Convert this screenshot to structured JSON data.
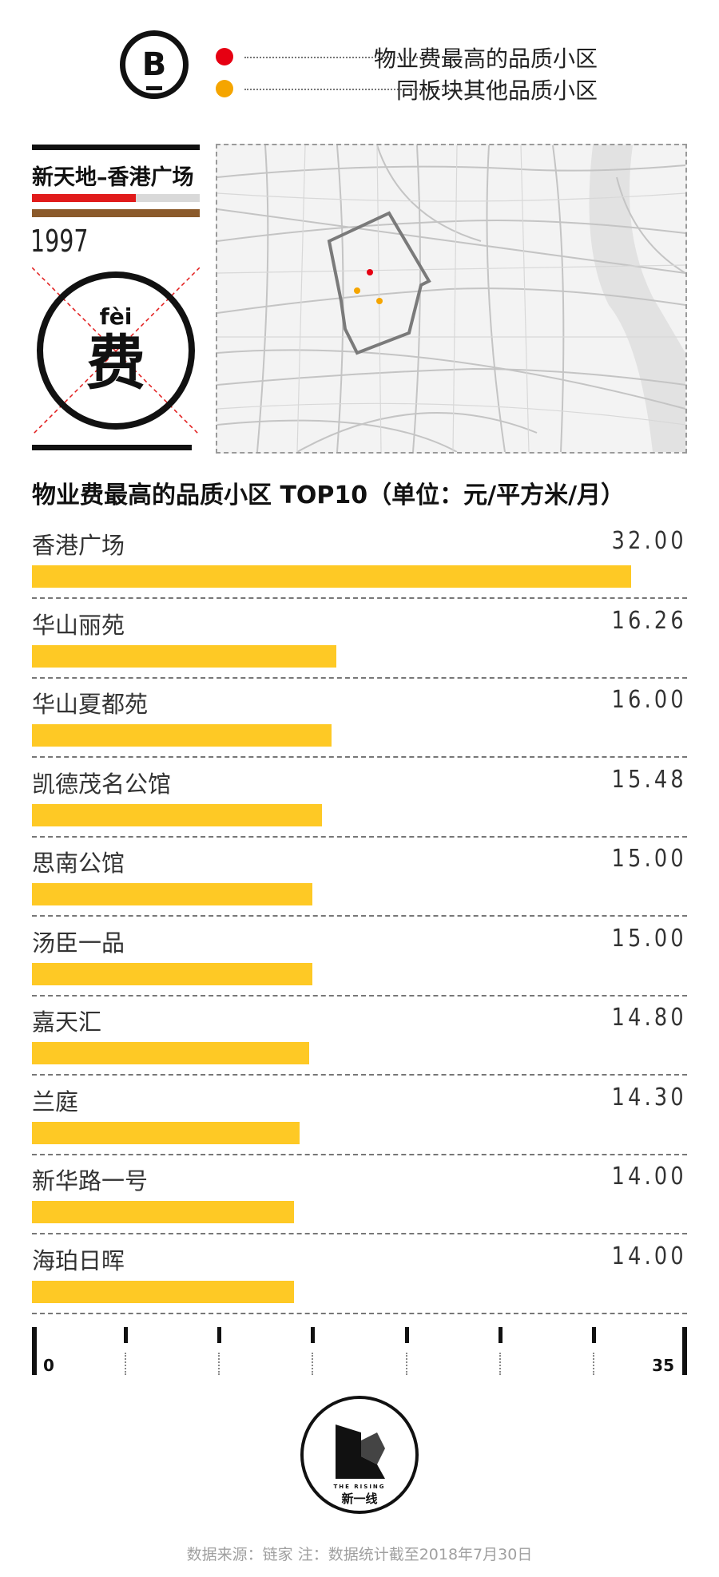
{
  "header": {
    "badge_letter": "B",
    "legend": [
      {
        "label": "物业费最高的品质小区",
        "color": "#e60012"
      },
      {
        "label": "同板块其他品质小区",
        "color": "#f5a500"
      }
    ]
  },
  "info": {
    "area_name": "新天地–香港广场",
    "year": "1997",
    "pinyin": "fèi",
    "hanzi": "费",
    "red_bar_fraction": 0.62
  },
  "map": {
    "marker_red_color": "#e60012",
    "marker_orange_color": "#f5a500"
  },
  "chart_data": {
    "type": "bar",
    "orientation": "horizontal",
    "title": "物业费最高的品质小区 TOP10（单位：元/平方米/月）",
    "categories": [
      "香港广场",
      "华山丽苑",
      "华山夏都苑",
      "凯德茂名公馆",
      "思南公馆",
      "汤臣一品",
      "嘉天汇",
      "兰庭",
      "新华路一号",
      "海珀日晖"
    ],
    "values": [
      32.0,
      16.26,
      16.0,
      15.48,
      15.0,
      15.0,
      14.8,
      14.3,
      14.0,
      14.0
    ],
    "value_labels": [
      "32.00",
      "16.26",
      "16.00",
      "15.48",
      "15.00",
      "15.00",
      "14.80",
      "14.30",
      "14.00",
      "14.00"
    ],
    "xlim": [
      0,
      35
    ],
    "axis_tick_labels": [
      "0",
      "35"
    ],
    "bar_color": "#fec925",
    "grid": false
  },
  "footer": {
    "logo_sub": "THE RISING",
    "logo_name": "新一线",
    "source": "数据来源：链家  注：数据统计截至2018年7月30日"
  }
}
